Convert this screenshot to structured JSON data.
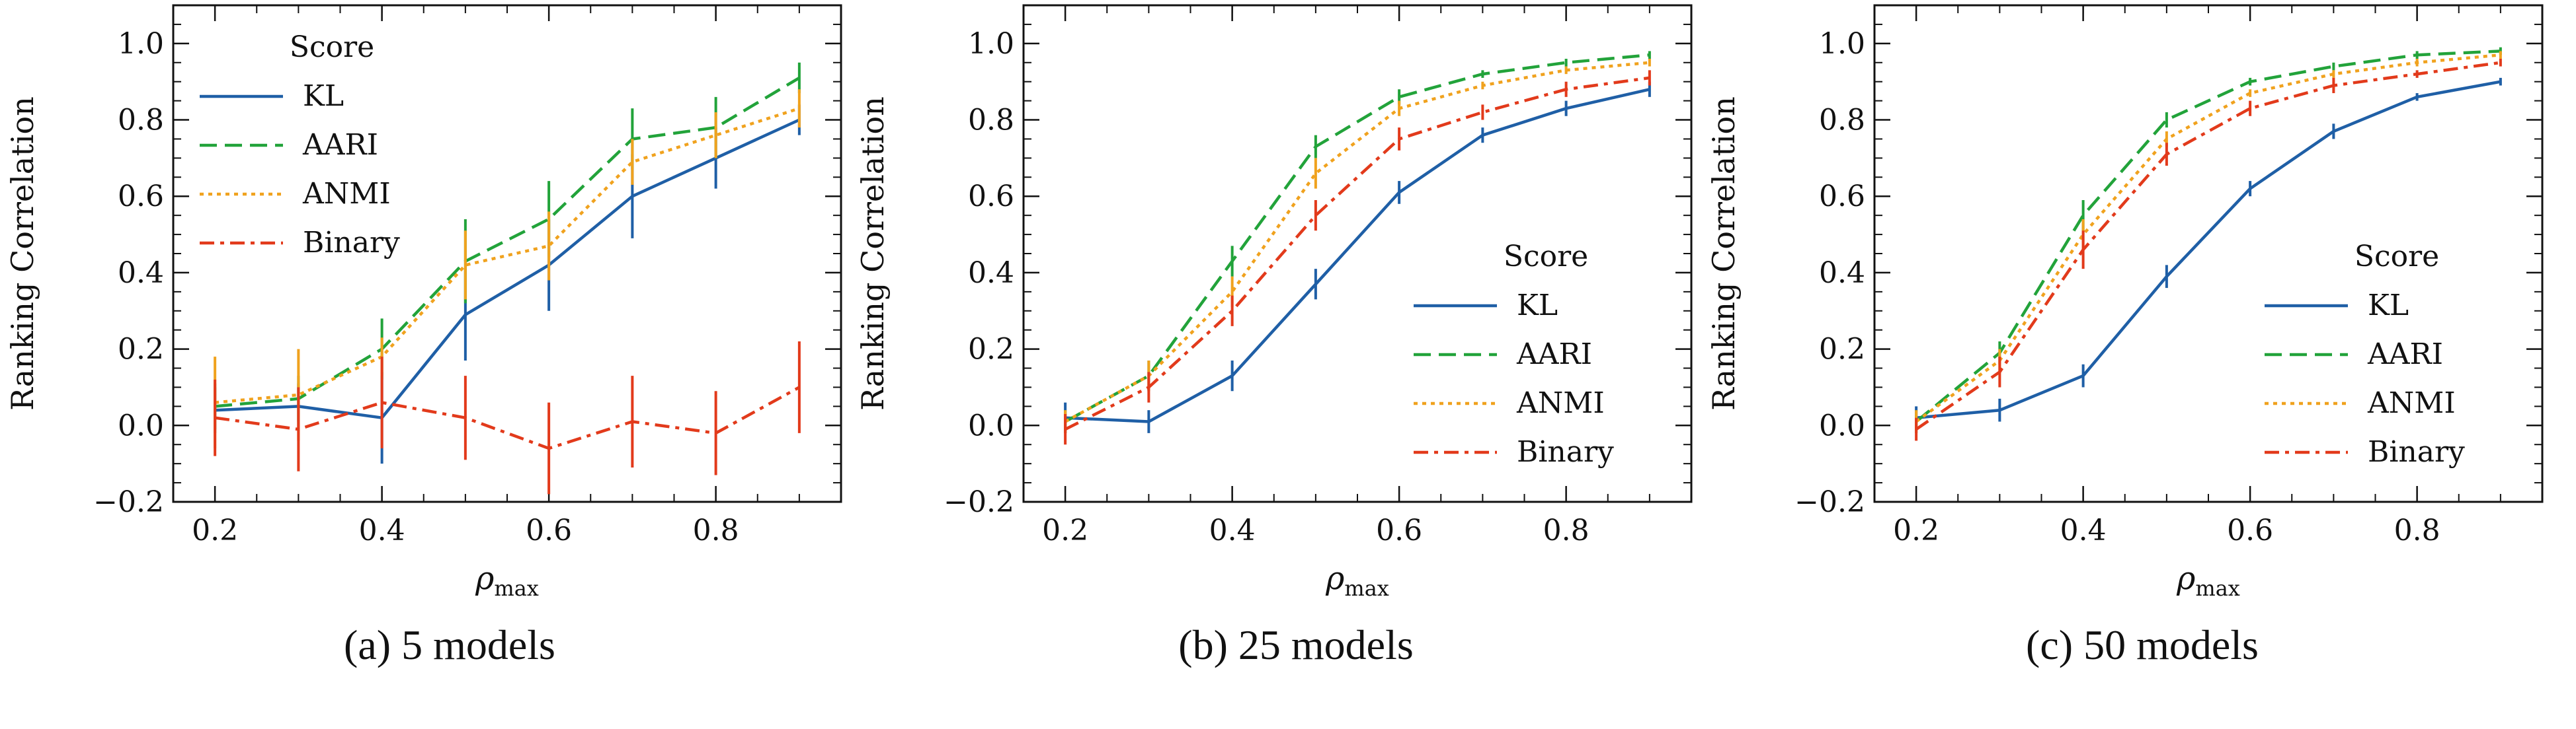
{
  "figure": {
    "captions": [
      "(a) 5 models",
      "(b) 25 models",
      "(c) 50 models"
    ]
  },
  "chart_data": [
    {
      "type": "line",
      "title": "",
      "xlabel": "ρmax",
      "ylabel": "Ranking Correlation",
      "xlim": [
        0.15,
        0.95
      ],
      "ylim": [
        -0.2,
        1.1
      ],
      "xticks": [
        "0.2",
        "0.4",
        "0.6",
        "0.8"
      ],
      "xtick_values": [
        0.2,
        0.4,
        0.6,
        0.8
      ],
      "yticks": [
        "−0.2",
        "0.0",
        "0.2",
        "0.4",
        "0.6",
        "0.8",
        "1.0"
      ],
      "ytick_values": [
        -0.2,
        0.0,
        0.2,
        0.4,
        0.6,
        0.8,
        1.0
      ],
      "legend": {
        "title": "Score",
        "placement": "upper-left"
      },
      "x": [
        0.2,
        0.3,
        0.4,
        0.5,
        0.6,
        0.7,
        0.8,
        0.9
      ],
      "series": [
        {
          "name": "KL",
          "color": "#1f5fa6",
          "dash": "solid",
          "values": [
            0.04,
            0.05,
            0.02,
            0.29,
            0.42,
            0.6,
            0.7,
            0.8
          ],
          "error": [
            0.06,
            0.06,
            0.12,
            0.12,
            0.12,
            0.11,
            0.08,
            0.04
          ]
        },
        {
          "name": "AARI",
          "color": "#22a33a",
          "dash": "dashed",
          "values": [
            0.05,
            0.07,
            0.2,
            0.43,
            0.54,
            0.75,
            0.78,
            0.91
          ],
          "error": [
            0.06,
            0.06,
            0.08,
            0.11,
            0.1,
            0.08,
            0.08,
            0.04
          ]
        },
        {
          "name": "ANMI",
          "color": "#f0a21e",
          "dash": "dotted",
          "values": [
            0.06,
            0.08,
            0.18,
            0.42,
            0.47,
            0.69,
            0.76,
            0.83
          ],
          "error": [
            0.12,
            0.12,
            0.05,
            0.09,
            0.09,
            0.06,
            0.06,
            0.05
          ]
        },
        {
          "name": "Binary",
          "color": "#e23a1b",
          "dash": "dashdot",
          "values": [
            0.02,
            -0.01,
            0.06,
            0.02,
            -0.06,
            0.01,
            -0.02,
            0.1
          ],
          "error": [
            0.1,
            0.11,
            0.12,
            0.11,
            0.12,
            0.12,
            0.11,
            0.12
          ]
        }
      ]
    },
    {
      "type": "line",
      "title": "",
      "xlabel": "ρmax",
      "ylabel": "Ranking Correlation",
      "xlim": [
        0.15,
        0.95
      ],
      "ylim": [
        -0.2,
        1.1
      ],
      "xticks": [
        "0.2",
        "0.4",
        "0.6",
        "0.8"
      ],
      "xtick_values": [
        0.2,
        0.4,
        0.6,
        0.8
      ],
      "yticks": [
        "−0.2",
        "0.0",
        "0.2",
        "0.4",
        "0.6",
        "0.8",
        "1.0"
      ],
      "ytick_values": [
        -0.2,
        0.0,
        0.2,
        0.4,
        0.6,
        0.8,
        1.0
      ],
      "legend": {
        "title": "Score",
        "placement": "lower-right"
      },
      "x": [
        0.2,
        0.3,
        0.4,
        0.5,
        0.6,
        0.7,
        0.8,
        0.9
      ],
      "series": [
        {
          "name": "KL",
          "color": "#1f5fa6",
          "dash": "solid",
          "values": [
            0.02,
            0.01,
            0.13,
            0.37,
            0.61,
            0.76,
            0.83,
            0.88
          ],
          "error": [
            0.04,
            0.03,
            0.04,
            0.04,
            0.03,
            0.02,
            0.02,
            0.02
          ]
        },
        {
          "name": "AARI",
          "color": "#22a33a",
          "dash": "dashed",
          "values": [
            0.01,
            0.13,
            0.43,
            0.73,
            0.86,
            0.92,
            0.95,
            0.97
          ],
          "error": [
            0.03,
            0.04,
            0.04,
            0.03,
            0.02,
            0.01,
            0.01,
            0.01
          ]
        },
        {
          "name": "ANMI",
          "color": "#f0a21e",
          "dash": "dotted",
          "values": [
            0.01,
            0.13,
            0.35,
            0.66,
            0.83,
            0.89,
            0.93,
            0.95
          ],
          "error": [
            0.03,
            0.04,
            0.04,
            0.04,
            0.02,
            0.01,
            0.01,
            0.01
          ]
        },
        {
          "name": "Binary",
          "color": "#e23a1b",
          "dash": "dashdot",
          "values": [
            -0.01,
            0.1,
            0.3,
            0.55,
            0.75,
            0.82,
            0.88,
            0.91
          ],
          "error": [
            0.04,
            0.04,
            0.04,
            0.04,
            0.03,
            0.02,
            0.02,
            0.02
          ]
        }
      ]
    },
    {
      "type": "line",
      "title": "",
      "xlabel": "ρmax",
      "ylabel": "Ranking Correlation",
      "xlim": [
        0.15,
        0.95
      ],
      "ylim": [
        -0.2,
        1.1
      ],
      "xticks": [
        "0.2",
        "0.4",
        "0.6",
        "0.8"
      ],
      "xtick_values": [
        0.2,
        0.4,
        0.6,
        0.8
      ],
      "yticks": [
        "−0.2",
        "0.0",
        "0.2",
        "0.4",
        "0.6",
        "0.8",
        "1.0"
      ],
      "ytick_values": [
        -0.2,
        0.0,
        0.2,
        0.4,
        0.6,
        0.8,
        1.0
      ],
      "legend": {
        "title": "Score",
        "placement": "lower-right"
      },
      "x": [
        0.2,
        0.3,
        0.4,
        0.5,
        0.6,
        0.7,
        0.8,
        0.9
      ],
      "series": [
        {
          "name": "KL",
          "color": "#1f5fa6",
          "dash": "solid",
          "values": [
            0.02,
            0.04,
            0.13,
            0.39,
            0.62,
            0.77,
            0.86,
            0.9
          ],
          "error": [
            0.03,
            0.03,
            0.03,
            0.03,
            0.02,
            0.02,
            0.01,
            0.01
          ]
        },
        {
          "name": "AARI",
          "color": "#22a33a",
          "dash": "dashed",
          "values": [
            0.01,
            0.19,
            0.55,
            0.8,
            0.9,
            0.94,
            0.97,
            0.98
          ],
          "error": [
            0.03,
            0.03,
            0.04,
            0.02,
            0.01,
            0.01,
            0.01,
            0.01
          ]
        },
        {
          "name": "ANMI",
          "color": "#f0a21e",
          "dash": "dotted",
          "values": [
            0.01,
            0.17,
            0.5,
            0.75,
            0.87,
            0.92,
            0.95,
            0.97
          ],
          "error": [
            0.03,
            0.03,
            0.04,
            0.02,
            0.01,
            0.01,
            0.01,
            0.01
          ]
        },
        {
          "name": "Binary",
          "color": "#e23a1b",
          "dash": "dashdot",
          "values": [
            -0.01,
            0.14,
            0.46,
            0.71,
            0.83,
            0.89,
            0.92,
            0.95
          ],
          "error": [
            0.03,
            0.04,
            0.05,
            0.03,
            0.02,
            0.02,
            0.01,
            0.01
          ]
        }
      ]
    }
  ]
}
